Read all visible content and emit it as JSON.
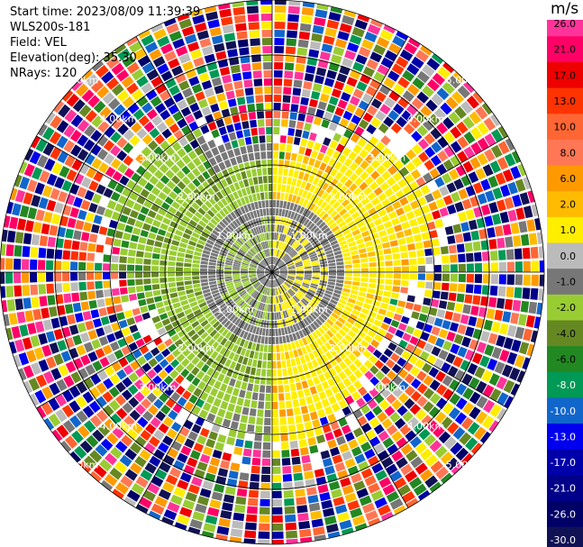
{
  "header": {
    "start_time": "Start time: 2023/08/09 11:39:39",
    "instrument": "WLS200s-181",
    "field": "Field: VEL",
    "elevation": "Elevation(deg): 35.30",
    "nrays": "NRays: 120"
  },
  "ring_labels": [
    "1.00km",
    "2.00km",
    "3.00km",
    "4.00km",
    "5.00km"
  ],
  "colorbar": {
    "unit": "m/s",
    "ticks": [
      "26.0",
      "21.0",
      "17.0",
      "13.0",
      "10.0",
      "8.0",
      "6.0",
      "2.0",
      "1.0",
      "0.0",
      "-1.0",
      "-2.0",
      "-4.0",
      "-6.0",
      "-8.0",
      "-10.0",
      "-13.0",
      "-17.0",
      "-21.0",
      "-26.0",
      "-30.0"
    ],
    "colors": [
      "#ff3399",
      "#ff0066",
      "#ee0000",
      "#ff3300",
      "#ff6633",
      "#ff7755",
      "#ff9900",
      "#ffbb00",
      "#ffee00",
      "#bbbbbb",
      "#777777",
      "#99cc33",
      "#668822",
      "#228822",
      "#009955",
      "#1166cc",
      "#0000ee",
      "#0000aa",
      "#000088",
      "#000066",
      "#111155"
    ]
  }
}
